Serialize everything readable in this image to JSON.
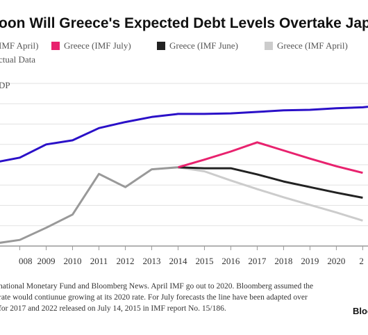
{
  "chart_data": {
    "type": "line",
    "title": "oon Will Greece's Expected Debt Levels Overtake Jap",
    "ylabel": "DP",
    "x": [
      2007,
      2008,
      2009,
      2010,
      2011,
      2012,
      2013,
      2014,
      2015,
      2016,
      2017,
      2018,
      2019,
      2020,
      2021
    ],
    "xlim": [
      2007.25,
      2021.2
    ],
    "ylim": [
      100,
      260
    ],
    "grid": true,
    "tick_labels_x": [
      "008",
      "2009",
      "2010",
      "2011",
      "2012",
      "2013",
      "2014",
      "2015",
      "2016",
      "2017",
      "2018",
      "2019",
      "2020",
      "2"
    ],
    "legend": [
      {
        "label": "IMF April)",
        "color": "#2a10c8"
      },
      {
        "label": "Greece (IMF July)",
        "color": "#e8226e"
      },
      {
        "label": "Greece (IMF June)",
        "color": "#222222"
      },
      {
        "label": "Greece (IMF April)",
        "color": "#cccccc"
      },
      {
        "label": "ctual Data",
        "color": "#999999"
      }
    ],
    "series": [
      {
        "name": "IMF April)",
        "color": "#2a10c8",
        "x": [
          2007.2,
          2008,
          2009,
          2010,
          2011,
          2012,
          2013,
          2014,
          2015,
          2016,
          2017,
          2018,
          2019,
          2020,
          2021,
          2021.2
        ],
        "values": [
          183,
          187,
          200,
          204,
          216,
          222,
          227,
          230,
          230,
          230.5,
          232,
          233.5,
          234,
          235.5,
          236.5,
          237
        ]
      },
      {
        "name": "Greece (IMF July)",
        "color": "#e8226e",
        "x": [
          2014,
          2015,
          2016,
          2017,
          2018,
          2019,
          2020,
          2021
        ],
        "values": [
          177.5,
          185,
          193,
          202,
          194,
          186,
          178.5,
          172
        ]
      },
      {
        "name": "Greece (IMF June)",
        "color": "#222222",
        "x": [
          2014,
          2015,
          2016,
          2017,
          2018,
          2019,
          2020,
          2021
        ],
        "values": [
          177.5,
          176.5,
          176.5,
          170.5,
          163.5,
          158,
          152.5,
          147.5
        ]
      },
      {
        "name": "Greece (IMF April)",
        "color": "#cccccc",
        "x": [
          2014,
          2015,
          2016,
          2017,
          2018,
          2019,
          2020,
          2021
        ],
        "values": [
          177.5,
          173.5,
          164.5,
          156,
          148,
          140.5,
          133,
          125
        ]
      },
      {
        "name": "ctual Data",
        "color": "#999999",
        "x": [
          2007.2,
          2008,
          2009,
          2010,
          2011,
          2012,
          2013,
          2014
        ],
        "values": [
          103,
          106,
          118,
          131,
          171,
          158,
          175.5,
          177.5
        ]
      }
    ]
  },
  "footnote": {
    "lines": [
      "national Monetary Fund and Bloomberg News. April IMF go out to 2020. Bloomberg assumed the",
      "rate would contiunue growing at its 2020 rate. For July forecasts the line have been adapted over",
      "for 2017 and 2022 released on July 14, 2015 in IMF report No. 15/186."
    ],
    "brand": "Bloo"
  }
}
